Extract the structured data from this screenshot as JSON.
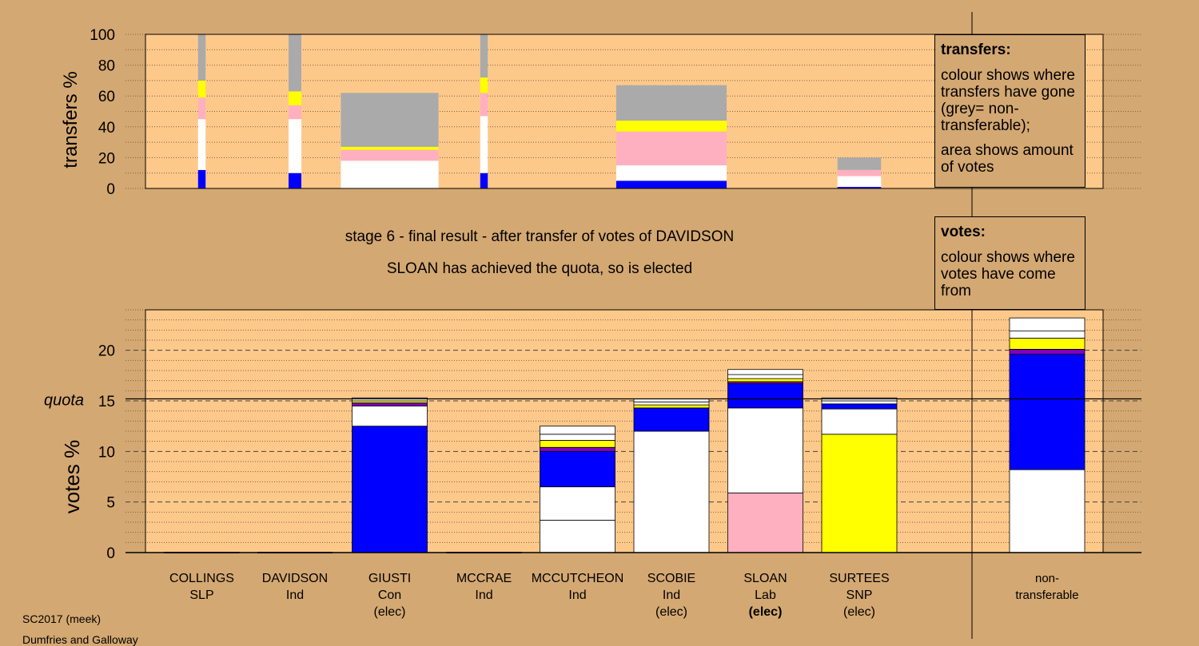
{
  "transfers_legend": {
    "title": "transfers:",
    "line1": "colour shows where transfers have gone (grey= non-transferable);",
    "line2": "area shows amount of votes"
  },
  "votes_legend": {
    "title": "votes:",
    "line1": "colour shows where votes have come from"
  },
  "stage_text": "stage 6 - final result - after transfer of votes of DAVIDSON",
  "result_text": "SLOAN has achieved the quota, so is elected",
  "footer": {
    "line1": "SC2017 (meek)",
    "line2": "Dumfries and Galloway"
  },
  "colors": {
    "background": "#d4a872",
    "plot_bg": "#fdc98b",
    "SLP": "#ffffff",
    "Con": "#0000ff",
    "Lab": "#ffb0c0",
    "SNP": "#ffff00",
    "Ind": "#ffffff",
    "purple": "#8000c0",
    "nontransferable": "#aaaaaa"
  },
  "chart_data": [
    {
      "type": "bar",
      "title": "",
      "ylabel": "transfers %",
      "ylim": [
        0,
        100
      ],
      "yticks": [
        0,
        20,
        40,
        60,
        80,
        100
      ],
      "bars": [
        {
          "slot": "COLLINGS",
          "width": 0.1,
          "segments": [
            {
              "value": 12,
              "color": "#0000ff"
            },
            {
              "value": 33,
              "color": "#ffffff"
            },
            {
              "value": 14,
              "color": "#ffb0c0"
            },
            {
              "value": 11,
              "color": "#ffff00"
            },
            {
              "value": 30,
              "color": "#aaaaaa"
            }
          ]
        },
        {
          "slot": "DAVIDSON",
          "width": 0.17,
          "segments": [
            {
              "value": 10,
              "color": "#0000ff"
            },
            {
              "value": 35,
              "color": "#ffffff"
            },
            {
              "value": 9,
              "color": "#ffb0c0"
            },
            {
              "value": 9,
              "color": "#ffff00"
            },
            {
              "value": 37,
              "color": "#aaaaaa"
            }
          ]
        },
        {
          "slot": "GIUSTI",
          "width": 1.3,
          "segments": [
            {
              "value": 18,
              "color": "#ffffff"
            },
            {
              "value": 7,
              "color": "#ffb0c0"
            },
            {
              "value": 2,
              "color": "#ffff00"
            },
            {
              "value": 35,
              "color": "#aaaaaa"
            }
          ]
        },
        {
          "slot": "MCCRAE",
          "width": 0.1,
          "segments": [
            {
              "value": 10,
              "color": "#0000ff"
            },
            {
              "value": 37,
              "color": "#ffffff"
            },
            {
              "value": 15,
              "color": "#ffb0c0"
            },
            {
              "value": 10,
              "color": "#ffff00"
            },
            {
              "value": 28,
              "color": "#aaaaaa"
            }
          ]
        },
        {
          "slot": "SCOBIE",
          "width": 1.47,
          "segments": [
            {
              "value": 5,
              "color": "#0000ff"
            },
            {
              "value": 10,
              "color": "#ffffff"
            },
            {
              "value": 22,
              "color": "#ffb0c0"
            },
            {
              "value": 7,
              "color": "#ffff00"
            },
            {
              "value": 23,
              "color": "#aaaaaa"
            }
          ]
        },
        {
          "slot": "SURTEES",
          "width": 0.58,
          "segments": [
            {
              "value": 1,
              "color": "#0000ff"
            },
            {
              "value": 7,
              "color": "#ffffff"
            },
            {
              "value": 4,
              "color": "#ffb0c0"
            },
            {
              "value": 8,
              "color": "#aaaaaa"
            }
          ]
        }
      ]
    },
    {
      "type": "bar",
      "title": "",
      "ylabel": "votes %",
      "ylim": [
        0,
        24
      ],
      "yticks": [
        0,
        5,
        10,
        15,
        20
      ],
      "quota": 15.2,
      "quota_label": "quota",
      "categories": [
        "COLLINGS",
        "DAVIDSON",
        "GIUSTI",
        "MCCRAE",
        "MCCUTCHEON",
        "SCOBIE",
        "SLOAN",
        "SURTEES",
        "non-transferable"
      ],
      "labels": [
        {
          "name": "COLLINGS",
          "party": "SLP",
          "status": ""
        },
        {
          "name": "DAVIDSON",
          "party": "Ind",
          "status": ""
        },
        {
          "name": "GIUSTI",
          "party": "Con",
          "status": "(elec)"
        },
        {
          "name": "MCCRAE",
          "party": "Ind",
          "status": ""
        },
        {
          "name": "MCCUTCHEON",
          "party": "Ind",
          "status": ""
        },
        {
          "name": "SCOBIE",
          "party": "Ind",
          "status": "(elec)"
        },
        {
          "name": "SLOAN",
          "party": "Lab",
          "status": "(elec)"
        },
        {
          "name": "SURTEES",
          "party": "SNP",
          "status": "(elec)"
        },
        {
          "name": "non-",
          "party": "transferable",
          "status": ""
        }
      ],
      "bars": [
        {
          "category": "COLLINGS",
          "segments": []
        },
        {
          "category": "DAVIDSON",
          "segments": []
        },
        {
          "category": "GIUSTI",
          "segments": [
            {
              "value": 12.5,
              "color": "#0000ff"
            },
            {
              "value": 2.0,
              "color": "#ffffff"
            },
            {
              "value": 0.3,
              "color": "#8000c0"
            },
            {
              "value": 0.2,
              "color": "#ffff00"
            },
            {
              "value": 0.3,
              "color": "#ffffff"
            }
          ]
        },
        {
          "category": "MCCRAE",
          "segments": []
        },
        {
          "category": "MCCUTCHEON",
          "segments": [
            {
              "value": 3.2,
              "color": "#ffffff"
            },
            {
              "value": 3.3,
              "color": "#ffffff"
            },
            {
              "value": 3.5,
              "color": "#0000ff"
            },
            {
              "value": 0.4,
              "color": "#8000c0"
            },
            {
              "value": 0.7,
              "color": "#ffff00"
            },
            {
              "value": 0.6,
              "color": "#ffffff"
            },
            {
              "value": 0.8,
              "color": "#ffffff"
            }
          ]
        },
        {
          "category": "SCOBIE",
          "segments": [
            {
              "value": 12.0,
              "color": "#ffffff"
            },
            {
              "value": 2.3,
              "color": "#0000ff"
            },
            {
              "value": 0.3,
              "color": "#ffff00"
            },
            {
              "value": 0.3,
              "color": "#ffffff"
            },
            {
              "value": 0.3,
              "color": "#ffffff"
            }
          ]
        },
        {
          "category": "SLOAN",
          "segments": [
            {
              "value": 5.9,
              "color": "#ffb0c0"
            },
            {
              "value": 8.4,
              "color": "#ffffff"
            },
            {
              "value": 2.4,
              "color": "#0000ff"
            },
            {
              "value": 0.2,
              "color": "#8000c0"
            },
            {
              "value": 0.3,
              "color": "#ffff00"
            },
            {
              "value": 0.4,
              "color": "#ffffff"
            },
            {
              "value": 0.5,
              "color": "#ffffff"
            }
          ]
        },
        {
          "category": "SURTEES",
          "segments": [
            {
              "value": 11.7,
              "color": "#ffff00"
            },
            {
              "value": 2.5,
              "color": "#ffffff"
            },
            {
              "value": 0.5,
              "color": "#0000ff"
            },
            {
              "value": 0.3,
              "color": "#ffffff"
            },
            {
              "value": 0.3,
              "color": "#ffffff"
            }
          ]
        },
        {
          "category": "non-transferable",
          "segments": [
            {
              "value": 8.2,
              "color": "#ffffff"
            },
            {
              "value": 11.4,
              "color": "#0000ff"
            },
            {
              "value": 0.5,
              "color": "#8000c0"
            },
            {
              "value": 1.1,
              "color": "#ffff00"
            },
            {
              "value": 0.7,
              "color": "#ffffff"
            },
            {
              "value": 1.3,
              "color": "#ffffff"
            }
          ]
        }
      ]
    }
  ]
}
